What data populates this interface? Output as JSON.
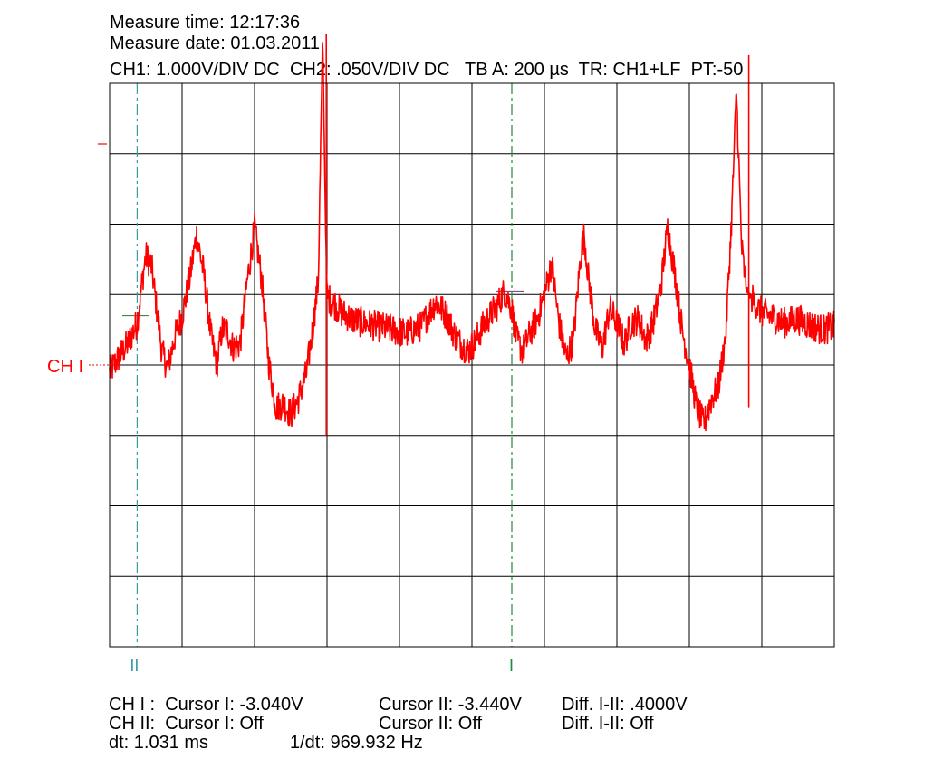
{
  "header": {
    "measure_time": "Measure time: 12:17:36",
    "measure_date": "Measure date: 01.03.2011",
    "settings": "CH1: 1.000V/DIV DC  CH2: .050V/DIV DC   TB A: 200 µs  TR: CH1+LF  PT:-50"
  },
  "markers": {
    "ch1_label": "CH I",
    "cursor2_label": "II",
    "cursor1_label": "I"
  },
  "footer": {
    "ch1_cursor1": "CH I :  Cursor I: -3.040V",
    "ch1_cursor2": "Cursor II: -3.440V",
    "ch1_diff": "Diff. I-II: .4000V",
    "ch2_cursor1": "CH II:  Cursor I: Off",
    "ch2_cursor2": "Cursor II: Off",
    "ch2_diff": "Diff. I-II: Off",
    "dt": "dt: 1.031 ms",
    "inv_dt": "1/dt: 969.932 Hz"
  },
  "colors": {
    "trace": "#ff0000",
    "grid": "#000000",
    "cursor_ii": "#3a9aa8",
    "cursor_i": "#1f8a3a"
  },
  "chart_data": {
    "type": "line",
    "xlim": [
      0,
      10
    ],
    "ylim": [
      -4,
      4
    ],
    "grid": true,
    "cursors": {
      "cursor_ii_x": 0.38,
      "cursor_i_x": 5.55
    },
    "series": [
      {
        "x": [
          0,
          0.12,
          0.25,
          0.38,
          0.45,
          0.5,
          0.58,
          0.65,
          0.72,
          0.8,
          0.9,
          1.0,
          1.1,
          1.2,
          1.3,
          1.4,
          1.48,
          1.55,
          1.62,
          1.7,
          1.8,
          1.9,
          2.0,
          2.1,
          2.2,
          2.3,
          2.4,
          2.5,
          2.6,
          2.72,
          2.8,
          2.88,
          2.94,
          2.98,
          3.0,
          3.02,
          3.06,
          3.12,
          3.2,
          3.35,
          3.5,
          3.7,
          3.9,
          4.1,
          4.3,
          4.5,
          4.65,
          4.75,
          4.85,
          4.95,
          5.05,
          5.15,
          5.25,
          5.35,
          5.45,
          5.55,
          5.62,
          5.7,
          5.8,
          5.9,
          6.0,
          6.1,
          6.2,
          6.3,
          6.4,
          6.5,
          6.55,
          6.6,
          6.7,
          6.8,
          6.9,
          7.0,
          7.1,
          7.2,
          7.3,
          7.4,
          7.5,
          7.6,
          7.7,
          7.8,
          7.9,
          8.0,
          8.1,
          8.2,
          8.3,
          8.4,
          8.5,
          8.58,
          8.65,
          8.72,
          8.78,
          8.83,
          8.86,
          8.9,
          8.95,
          9.0,
          9.1,
          9.3,
          9.5,
          9.7,
          9.85,
          10.0
        ],
        "y": [
          -0.1,
          0.1,
          0.3,
          0.6,
          1.2,
          1.55,
          1.4,
          0.8,
          0.2,
          -0.05,
          0.4,
          0.7,
          1.2,
          1.85,
          1.3,
          0.4,
          0.0,
          0.5,
          0.5,
          0.25,
          0.3,
          1.2,
          1.95,
          1.2,
          0.0,
          -0.6,
          -0.55,
          -0.7,
          -0.5,
          -0.1,
          0.5,
          1.2,
          4.7,
          2.0,
          1.0,
          0.95,
          0.9,
          0.85,
          0.75,
          0.65,
          0.6,
          0.55,
          0.5,
          0.45,
          0.55,
          0.9,
          0.7,
          0.45,
          0.3,
          0.2,
          0.35,
          0.55,
          0.7,
          0.85,
          1.05,
          0.8,
          0.35,
          0.2,
          0.45,
          0.65,
          1.0,
          1.45,
          0.6,
          0.1,
          0.35,
          1.55,
          1.85,
          1.3,
          0.5,
          0.25,
          0.8,
          0.6,
          0.3,
          0.6,
          0.65,
          0.35,
          0.6,
          1.05,
          1.95,
          1.3,
          0.5,
          0.0,
          -0.6,
          -0.85,
          -0.5,
          -0.3,
          0.4,
          2.0,
          3.9,
          1.7,
          1.1,
          1.0,
          0.95,
          0.9,
          0.8,
          0.75,
          0.7,
          0.6,
          0.65,
          0.55,
          0.5,
          0.55
        ]
      }
    ]
  }
}
